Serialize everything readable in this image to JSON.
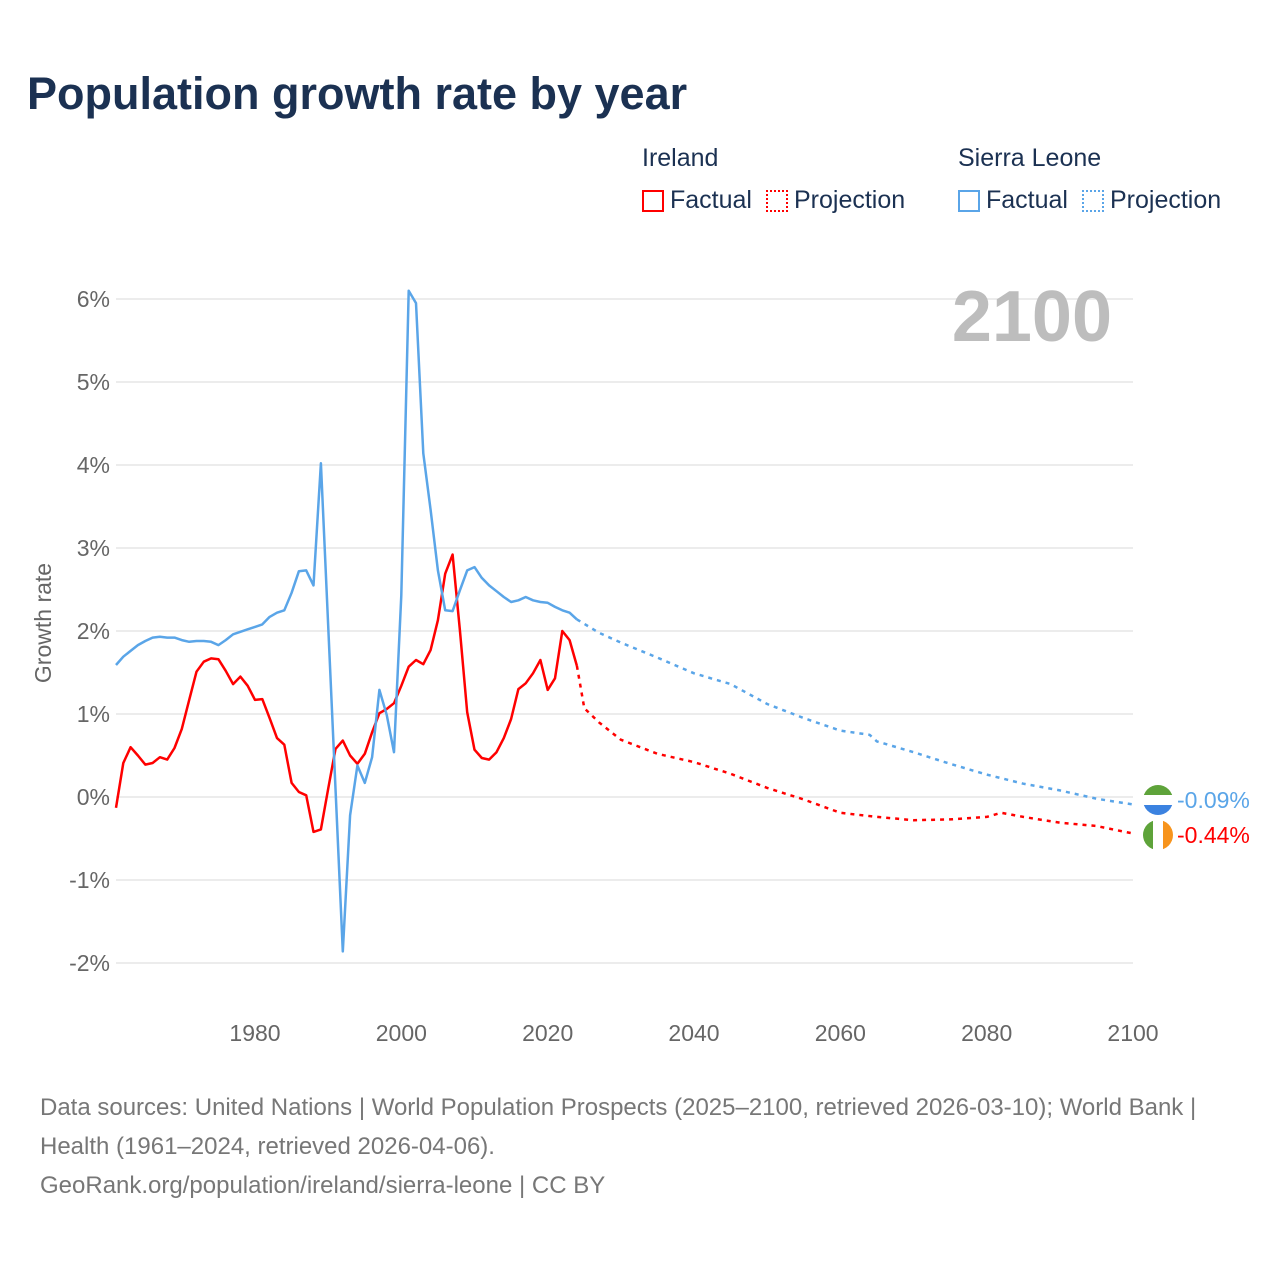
{
  "title": "Population growth rate by year",
  "legend": {
    "groups": [
      {
        "name": "Ireland",
        "factual": "Factual",
        "projection": "Projection",
        "color": "#ff0000"
      },
      {
        "name": "Sierra Leone",
        "factual": "Factual",
        "projection": "Projection",
        "color": "#5aa5e8"
      }
    ]
  },
  "year_label": "2100",
  "end_labels": {
    "sierra_leone": "-0.09%",
    "ireland": "-0.44%"
  },
  "source": {
    "line1": "Data sources: United Nations | World Population Prospects (2025–2100, retrieved 2026-03-10); World Bank | Health (1961–2024, retrieved 2026-04-06).",
    "line2": "GeoRank.org/population/ireland/sierra-leone | CC BY"
  },
  "chart_data": {
    "type": "line",
    "title": "Population growth rate by year",
    "xlabel": "",
    "ylabel": "Growth rate",
    "xlim": [
      1961,
      2100
    ],
    "ylim": [
      -2.4,
      6.2
    ],
    "x_ticks": [
      1980,
      2000,
      2020,
      2040,
      2060,
      2080,
      2100
    ],
    "x_tick_labels": [
      "1980",
      "2000",
      "2020",
      "2040",
      "2060",
      "2080",
      "2100"
    ],
    "y_ticks": [
      -2,
      -1,
      0,
      1,
      2,
      3,
      4,
      5,
      6
    ],
    "y_tick_labels": [
      "-2%",
      "-1%",
      "0%",
      "1%",
      "2%",
      "3%",
      "4%",
      "5%",
      "6%"
    ],
    "grid": true,
    "legend_position": "top-right",
    "series": [
      {
        "name": "Ireland",
        "color": "#ff0000",
        "factual": {
          "x": [
            1961,
            1962,
            1963,
            1964,
            1965,
            1966,
            1967,
            1968,
            1969,
            1970,
            1971,
            1972,
            1973,
            1974,
            1975,
            1976,
            1977,
            1978,
            1979,
            1980,
            1981,
            1982,
            1983,
            1984,
            1985,
            1986,
            1987,
            1988,
            1989,
            1990,
            1991,
            1992,
            1993,
            1994,
            1995,
            1996,
            1997,
            1998,
            1999,
            2000,
            2001,
            2002,
            2003,
            2004,
            2005,
            2006,
            2007,
            2008,
            2009,
            2010,
            2011,
            2012,
            2013,
            2014,
            2015,
            2016,
            2017,
            2018,
            2019,
            2020,
            2021,
            2022,
            2023,
            2024
          ],
          "y": [
            -0.13,
            0.41,
            0.6,
            0.5,
            0.39,
            0.41,
            0.48,
            0.45,
            0.59,
            0.82,
            1.17,
            1.51,
            1.63,
            1.67,
            1.66,
            1.52,
            1.36,
            1.45,
            1.34,
            1.17,
            1.18,
            0.95,
            0.71,
            0.63,
            0.17,
            0.06,
            0.02,
            -0.42,
            -0.39,
            0.1,
            0.58,
            0.68,
            0.5,
            0.4,
            0.52,
            0.78,
            1.01,
            1.06,
            1.13,
            1.34,
            1.57,
            1.65,
            1.6,
            1.77,
            2.13,
            2.69,
            2.92,
            2.01,
            1.02,
            0.57,
            0.47,
            0.45,
            0.54,
            0.71,
            0.94,
            1.3,
            1.37,
            1.49,
            1.65,
            1.29,
            1.43,
            2.0,
            1.89,
            1.58
          ]
        },
        "projection": {
          "x": [
            2024,
            2025,
            2027,
            2030,
            2035,
            2040,
            2045,
            2050,
            2055,
            2060,
            2065,
            2070,
            2075,
            2080,
            2082,
            2085,
            2090,
            2095,
            2100
          ],
          "y": [
            1.58,
            1.07,
            0.9,
            0.69,
            0.52,
            0.42,
            0.28,
            0.11,
            -0.03,
            -0.19,
            -0.24,
            -0.28,
            -0.27,
            -0.24,
            -0.19,
            -0.24,
            -0.31,
            -0.35,
            -0.44
          ]
        }
      },
      {
        "name": "Sierra Leone",
        "color": "#5aa5e8",
        "factual": {
          "x": [
            1961,
            1962,
            1963,
            1964,
            1965,
            1966,
            1967,
            1968,
            1969,
            1970,
            1971,
            1972,
            1973,
            1974,
            1975,
            1976,
            1977,
            1978,
            1979,
            1980,
            1981,
            1982,
            1983,
            1984,
            1985,
            1986,
            1987,
            1988,
            1989,
            1990,
            1991,
            1992,
            1993,
            1994,
            1995,
            1996,
            1997,
            1998,
            1999,
            2000,
            2001,
            2002,
            2003,
            2004,
            2005,
            2006,
            2007,
            2008,
            2009,
            2010,
            2011,
            2012,
            2013,
            2014,
            2015,
            2016,
            2017,
            2018,
            2019,
            2020,
            2021,
            2022,
            2023,
            2024
          ],
          "y": [
            1.59,
            1.69,
            1.76,
            1.83,
            1.88,
            1.92,
            1.93,
            1.92,
            1.92,
            1.89,
            1.87,
            1.88,
            1.88,
            1.87,
            1.83,
            1.89,
            1.96,
            1.99,
            2.02,
            2.05,
            2.08,
            2.17,
            2.22,
            2.25,
            2.46,
            2.72,
            2.73,
            2.55,
            4.02,
            2.06,
            0.1,
            -1.86,
            -0.22,
            0.38,
            0.17,
            0.48,
            1.29,
            0.99,
            0.54,
            2.43,
            6.1,
            5.95,
            4.14,
            3.46,
            2.73,
            2.25,
            2.24,
            2.49,
            2.73,
            2.77,
            2.64,
            2.55,
            2.48,
            2.41,
            2.35,
            2.37,
            2.41,
            2.37,
            2.35,
            2.34,
            2.29,
            2.25,
            2.22,
            2.14
          ]
        },
        "projection": {
          "x": [
            2024,
            2027,
            2030,
            2035,
            2040,
            2045,
            2050,
            2055,
            2060,
            2064,
            2065,
            2070,
            2075,
            2080,
            2085,
            2090,
            2095,
            2100
          ],
          "y": [
            2.14,
            1.98,
            1.86,
            1.68,
            1.49,
            1.36,
            1.12,
            0.95,
            0.8,
            0.75,
            0.67,
            0.54,
            0.4,
            0.27,
            0.16,
            0.08,
            -0.02,
            -0.09
          ]
        }
      }
    ]
  }
}
